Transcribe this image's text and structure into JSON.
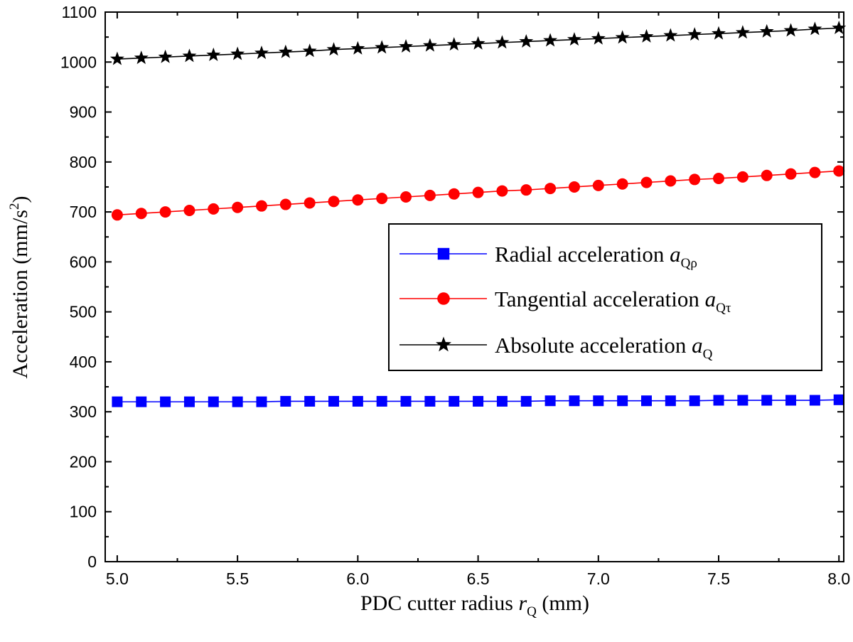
{
  "chart_data": {
    "type": "line",
    "xlabel": {
      "prefix": "PDC cutter radius ",
      "var": "r",
      "sub": "Q",
      "suffix": " (mm)"
    },
    "ylabel": {
      "prefix": "Acceleration (mm/s",
      "sup": "2",
      "suffix": ")"
    },
    "xlim": [
      4.95,
      8.02
    ],
    "ylim": [
      0,
      1100
    ],
    "xticks": [
      5.0,
      5.5,
      6.0,
      6.5,
      7.0,
      7.5,
      8.0
    ],
    "xtick_labels": [
      "5.0",
      "5.5",
      "6.0",
      "6.5",
      "7.0",
      "7.5",
      "8.0"
    ],
    "yticks": [
      0,
      100,
      200,
      300,
      400,
      500,
      600,
      700,
      800,
      900,
      1000,
      1100
    ],
    "ytick_labels": [
      "0",
      "100",
      "200",
      "300",
      "400",
      "500",
      "600",
      "700",
      "800",
      "900",
      "1000",
      "1100"
    ],
    "x": [
      5.0,
      5.1,
      5.2,
      5.3,
      5.4,
      5.5,
      5.6,
      5.7,
      5.8,
      5.9,
      6.0,
      6.1,
      6.2,
      6.3,
      6.4,
      6.5,
      6.6,
      6.7,
      6.8,
      6.9,
      7.0,
      7.1,
      7.2,
      7.3,
      7.4,
      7.5,
      7.6,
      7.7,
      7.8,
      7.9,
      8.0
    ],
    "legend_position": "center-right",
    "series": [
      {
        "name": "Radial acceleration",
        "legend_var": "a",
        "legend_sub": "Qρ",
        "color": "#0000ff",
        "marker": "square",
        "values": [
          320,
          320,
          320,
          320,
          320,
          320,
          320,
          321,
          321,
          321,
          321,
          321,
          321,
          321,
          321,
          321,
          321,
          321,
          322,
          322,
          322,
          322,
          322,
          322,
          322,
          323,
          323,
          323,
          323,
          323,
          324
        ]
      },
      {
        "name": "Tangential acceleration",
        "legend_var": "a",
        "legend_sub": "Qτ",
        "color": "#ff0000",
        "marker": "circle",
        "values": [
          694,
          697,
          700,
          703,
          706,
          709,
          712,
          715,
          718,
          721,
          724,
          727,
          730,
          733,
          736,
          739,
          742,
          744,
          747,
          750,
          753,
          756,
          759,
          762,
          765,
          767,
          770,
          773,
          776,
          779,
          782
        ]
      },
      {
        "name": "Absolute acceleration",
        "legend_var": "a",
        "legend_sub": "Q",
        "color": "#000000",
        "marker": "star",
        "values": [
          1006,
          1008,
          1010,
          1012,
          1014,
          1016,
          1018,
          1020,
          1022,
          1025,
          1027,
          1029,
          1031,
          1033,
          1035,
          1037,
          1039,
          1041,
          1043,
          1045,
          1047,
          1049,
          1051,
          1053,
          1055,
          1057,
          1059,
          1061,
          1063,
          1066,
          1068
        ]
      }
    ]
  }
}
